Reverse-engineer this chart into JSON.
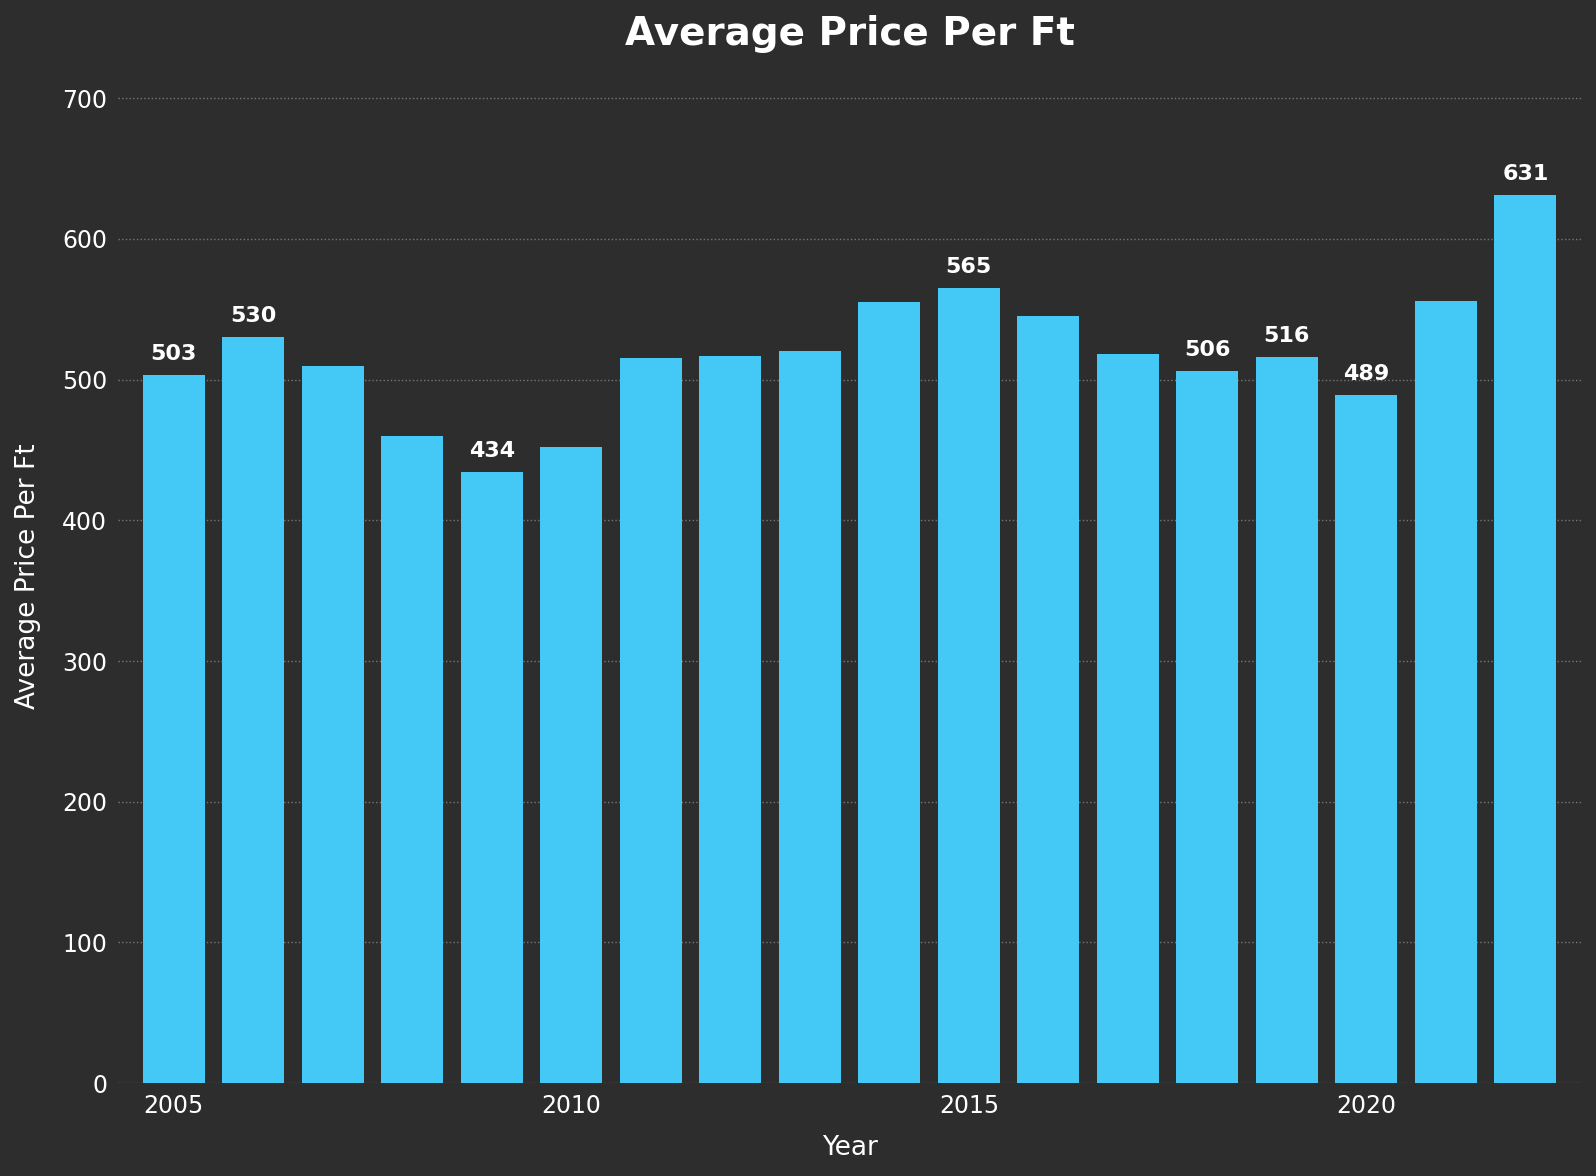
{
  "title": "Average Price Per Ft",
  "xlabel": "Year",
  "ylabel": "Average Price Per Ft",
  "background_color": "#2d2d2d",
  "bar_color": "#44C8F5",
  "text_color": "#ffffff",
  "years": [
    2005,
    2006,
    2007,
    2008,
    2009,
    2010,
    2011,
    2012,
    2013,
    2014,
    2015,
    2016,
    2017,
    2018,
    2019,
    2020,
    2021,
    2022
  ],
  "values": [
    503,
    530,
    510,
    460,
    434,
    452,
    515,
    517,
    520,
    555,
    565,
    545,
    518,
    506,
    516,
    489,
    556,
    631
  ],
  "label_map": {
    "0": 503,
    "1": 530,
    "4": 434,
    "10": 565,
    "13": 506,
    "14": 516,
    "15": 489,
    "17": 631
  },
  "xtick_years": [
    2005,
    2010,
    2015,
    2020
  ],
  "ylim": [
    0,
    720
  ],
  "yticks": [
    0,
    100,
    200,
    300,
    400,
    500,
    600,
    700
  ],
  "title_fontsize": 28,
  "axis_label_fontsize": 19,
  "tick_fontsize": 17,
  "bar_label_fontsize": 16,
  "bar_width": 0.78
}
